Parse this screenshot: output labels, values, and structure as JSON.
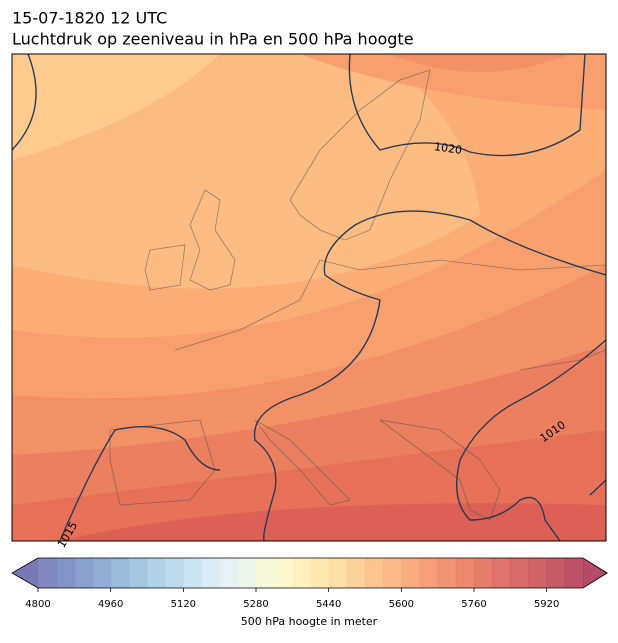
{
  "title": "15-07-1820 12 UTC",
  "subtitle": "Luchtdruk op zeeniveau in hPa en 500 hPa hoogte",
  "isobar_labels": [
    "1020",
    "1010",
    "1015"
  ],
  "colorbar": {
    "label": "500 hPa hoogte in meter",
    "range": [
      4800,
      6000
    ],
    "ticks": [
      4800,
      4960,
      5120,
      5280,
      5440,
      5600,
      5760,
      5920
    ],
    "colors": [
      "#6b73b3",
      "#6f81bc",
      "#7690c4",
      "#7e9fcb",
      "#88aed2",
      "#95bcd9",
      "#a3c9e0",
      "#b3d5e7",
      "#c3dfee",
      "#d2e8f2",
      "#e0eff3",
      "#ebf4e8",
      "#f4f7d8",
      "#fbf7c6",
      "#fdefb4",
      "#fde4a3",
      "#fdd896",
      "#fcca89",
      "#fbbb7d",
      "#faac73",
      "#f89d6a",
      "#f48e63",
      "#ef805d",
      "#e97357",
      "#e26753",
      "#da5b51",
      "#d1504f",
      "#c8464f",
      "#be3d4f",
      "#b3344f"
    ],
    "extend_low": "#5e62a8",
    "extend_high": "#a82c4d"
  }
}
